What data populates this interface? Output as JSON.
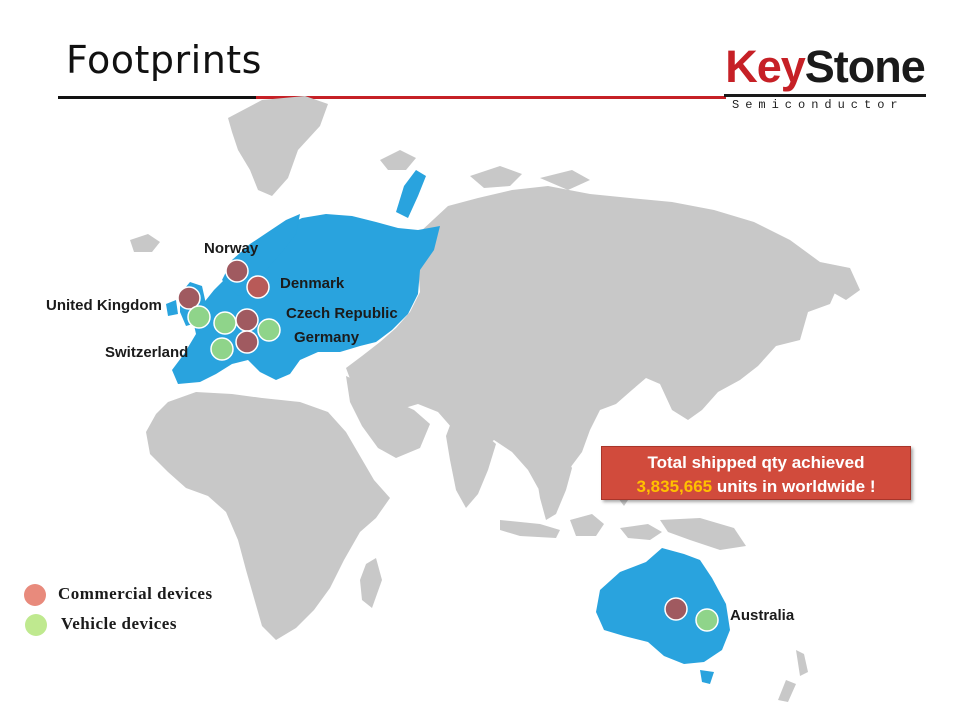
{
  "slide": {
    "title": "Footprints"
  },
  "logo": {
    "word_key": "Key",
    "word_stone": "Stone",
    "tagline": "Semiconductor"
  },
  "colors": {
    "highlight_region": "#29a3de",
    "land": "#c8c8c8",
    "commercial": "#a05a60",
    "vehicle": "#8fd48a",
    "accent_red": "#c62026",
    "callout_bg": "#d14b3c",
    "quantity": "#ffc000"
  },
  "highlighted_regions": [
    "Europe",
    "Australia"
  ],
  "locations": [
    {
      "name": "Norway",
      "devices": [
        "commercial"
      ]
    },
    {
      "name": "Denmark",
      "devices": [
        "commercial"
      ]
    },
    {
      "name": "United Kingdom",
      "devices": [
        "commercial",
        "vehicle"
      ]
    },
    {
      "name": "Czech Republic",
      "devices": [
        "commercial",
        "vehicle"
      ]
    },
    {
      "name": "Germany",
      "devices": [
        "commercial",
        "vehicle"
      ]
    },
    {
      "name": "Switzerland",
      "devices": [
        "vehicle"
      ]
    },
    {
      "name": "Australia",
      "devices": [
        "commercial",
        "vehicle"
      ]
    }
  ],
  "callout": {
    "line1": "Total shipped qty achieved",
    "quantity": "3,835,665",
    "line2_suffix": " units in worldwide !"
  },
  "legend": [
    {
      "label": "Commercial  devices",
      "color": "#e88a7c"
    },
    {
      "label": "Vehicle  devices",
      "color": "#bfe98f"
    }
  ]
}
